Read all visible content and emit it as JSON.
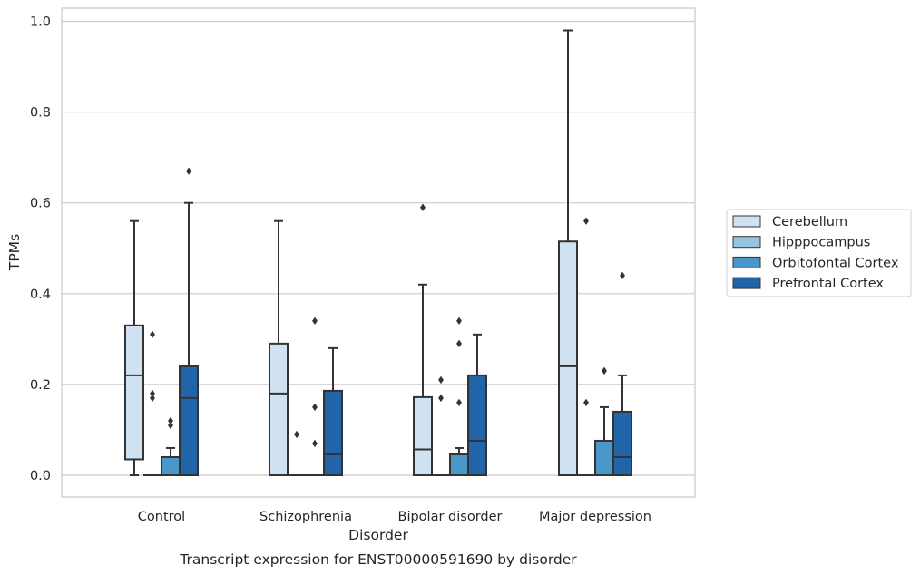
{
  "chart_data": {
    "type": "box",
    "title": "",
    "caption": "Transcript expression for ENST00000591690 by disorder",
    "xlabel": "Disorder",
    "ylabel": "TPMs",
    "ylim": [
      -0.045,
      1.03
    ],
    "yticks": [
      "0.0",
      "0.2",
      "0.4",
      "0.6",
      "0.8",
      "1.0"
    ],
    "grid": true,
    "legend_position": "right",
    "categories": [
      "Control",
      "Schizophrenia",
      "Bipolar disorder",
      "Major depression"
    ],
    "series": [
      {
        "name": "Cerebellum",
        "color": "#d0e1f2",
        "boxes": [
          {
            "q1": 0.035,
            "median": 0.22,
            "q3": 0.33,
            "whislo": 0.0,
            "whishi": 0.56,
            "fliers": []
          },
          {
            "q1": 0.0,
            "median": 0.18,
            "q3": 0.29,
            "whislo": 0.0,
            "whishi": 0.56,
            "fliers": []
          },
          {
            "q1": 0.0,
            "median": 0.057,
            "q3": 0.172,
            "whislo": 0.0,
            "whishi": 0.42,
            "fliers": [
              0.59
            ]
          },
          {
            "q1": 0.0,
            "median": 0.24,
            "q3": 0.515,
            "whislo": 0.0,
            "whishi": 0.98,
            "fliers": []
          }
        ]
      },
      {
        "name": "Hipppocampus",
        "color": "#94c4df",
        "boxes": [
          {
            "q1": 0.0,
            "median": 0.0,
            "q3": 0.0,
            "whislo": 0.0,
            "whishi": 0.0,
            "fliers": [
              0.31,
              0.18,
              0.17
            ]
          },
          {
            "q1": 0.0,
            "median": 0.0,
            "q3": 0.0,
            "whislo": 0.0,
            "whishi": 0.0,
            "fliers": [
              0.09
            ]
          },
          {
            "q1": 0.0,
            "median": 0.0,
            "q3": 0.0,
            "whislo": 0.0,
            "whishi": 0.0,
            "fliers": [
              0.21,
              0.17
            ]
          },
          {
            "q1": 0.0,
            "median": 0.0,
            "q3": 0.0,
            "whislo": 0.0,
            "whishi": 0.0,
            "fliers": [
              0.56,
              0.16
            ]
          }
        ]
      },
      {
        "name": "Orbitofontal Cortex",
        "color": "#4a98c9",
        "boxes": [
          {
            "q1": 0.0,
            "median": 0.0,
            "q3": 0.04,
            "whislo": 0.0,
            "whishi": 0.06,
            "fliers": [
              0.12,
              0.11
            ]
          },
          {
            "q1": 0.0,
            "median": 0.0,
            "q3": 0.0,
            "whislo": 0.0,
            "whishi": 0.0,
            "fliers": [
              0.34,
              0.15,
              0.07
            ]
          },
          {
            "q1": 0.0,
            "median": 0.0,
            "q3": 0.046,
            "whislo": 0.0,
            "whishi": 0.06,
            "fliers": [
              0.34,
              0.29,
              0.16
            ]
          },
          {
            "q1": 0.0,
            "median": 0.0,
            "q3": 0.076,
            "whislo": 0.0,
            "whishi": 0.15,
            "fliers": [
              0.23
            ]
          }
        ]
      },
      {
        "name": "Prefrontal Cortex",
        "color": "#2264a8",
        "boxes": [
          {
            "q1": 0.0,
            "median": 0.17,
            "q3": 0.24,
            "whislo": 0.0,
            "whishi": 0.6,
            "fliers": [
              0.67
            ]
          },
          {
            "q1": 0.0,
            "median": 0.046,
            "q3": 0.186,
            "whislo": 0.0,
            "whishi": 0.28,
            "fliers": []
          },
          {
            "q1": 0.0,
            "median": 0.076,
            "q3": 0.22,
            "whislo": 0.0,
            "whishi": 0.31,
            "fliers": []
          },
          {
            "q1": 0.0,
            "median": 0.04,
            "q3": 0.14,
            "whislo": 0.0,
            "whishi": 0.22,
            "fliers": [
              0.44
            ]
          }
        ]
      }
    ]
  }
}
